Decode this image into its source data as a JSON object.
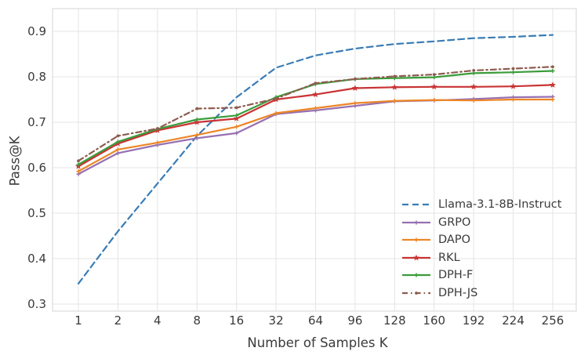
{
  "figure": {
    "xlabel": "Number of Samples K",
    "ylabel": "Pass@K"
  },
  "chart_data": {
    "type": "line",
    "title": "",
    "xlabel": "Number of Samples K",
    "ylabel": "Pass@K",
    "categories": [
      1,
      2,
      4,
      8,
      16,
      32,
      64,
      96,
      128,
      160,
      192,
      224,
      256
    ],
    "y_ticks": [
      0.3,
      0.4,
      0.5,
      0.6,
      0.7,
      0.8,
      0.9
    ],
    "ylim": [
      0.285,
      0.948
    ],
    "grid": true,
    "legend_position": "lower right",
    "grid_color": "#e4e4e4",
    "spine_color": "#dcdcdc",
    "tick_color": "#3a3a3a",
    "series": [
      {
        "name": "Llama-3.1-8B-Instruct",
        "color": "#3a7cb5",
        "style": "dashed",
        "marker": "none",
        "values": [
          0.345,
          0.46,
          0.565,
          0.67,
          0.755,
          0.82,
          0.847,
          0.862,
          0.872,
          0.878,
          0.885,
          0.888,
          0.892
        ]
      },
      {
        "name": "GRPO",
        "color": "#9770b1",
        "style": "solid",
        "marker": "plus",
        "values": [
          0.586,
          0.632,
          0.65,
          0.665,
          0.676,
          0.718,
          0.726,
          0.736,
          0.746,
          0.748,
          0.751,
          0.755,
          0.756
        ]
      },
      {
        "name": "DAPO",
        "color": "#ec8626",
        "style": "solid",
        "marker": "plus",
        "values": [
          0.592,
          0.64,
          0.655,
          0.672,
          0.69,
          0.72,
          0.731,
          0.742,
          0.747,
          0.749,
          0.748,
          0.75,
          0.75
        ]
      },
      {
        "name": "RKL",
        "color": "#c93334",
        "style": "solid",
        "marker": "star",
        "values": [
          0.603,
          0.653,
          0.682,
          0.7,
          0.708,
          0.75,
          0.761,
          0.775,
          0.777,
          0.778,
          0.778,
          0.779,
          0.782
        ]
      },
      {
        "name": "DPH-F",
        "color": "#3a9c3a",
        "style": "solid",
        "marker": "plus",
        "values": [
          0.607,
          0.657,
          0.685,
          0.706,
          0.715,
          0.755,
          0.784,
          0.795,
          0.797,
          0.799,
          0.808,
          0.81,
          0.813
        ]
      },
      {
        "name": "DPH-JS",
        "color": "#8e5c50",
        "style": "dashdot",
        "marker": "dot",
        "values": [
          0.615,
          0.67,
          0.686,
          0.73,
          0.732,
          0.752,
          0.786,
          0.795,
          0.801,
          0.805,
          0.814,
          0.818,
          0.822
        ]
      }
    ]
  }
}
